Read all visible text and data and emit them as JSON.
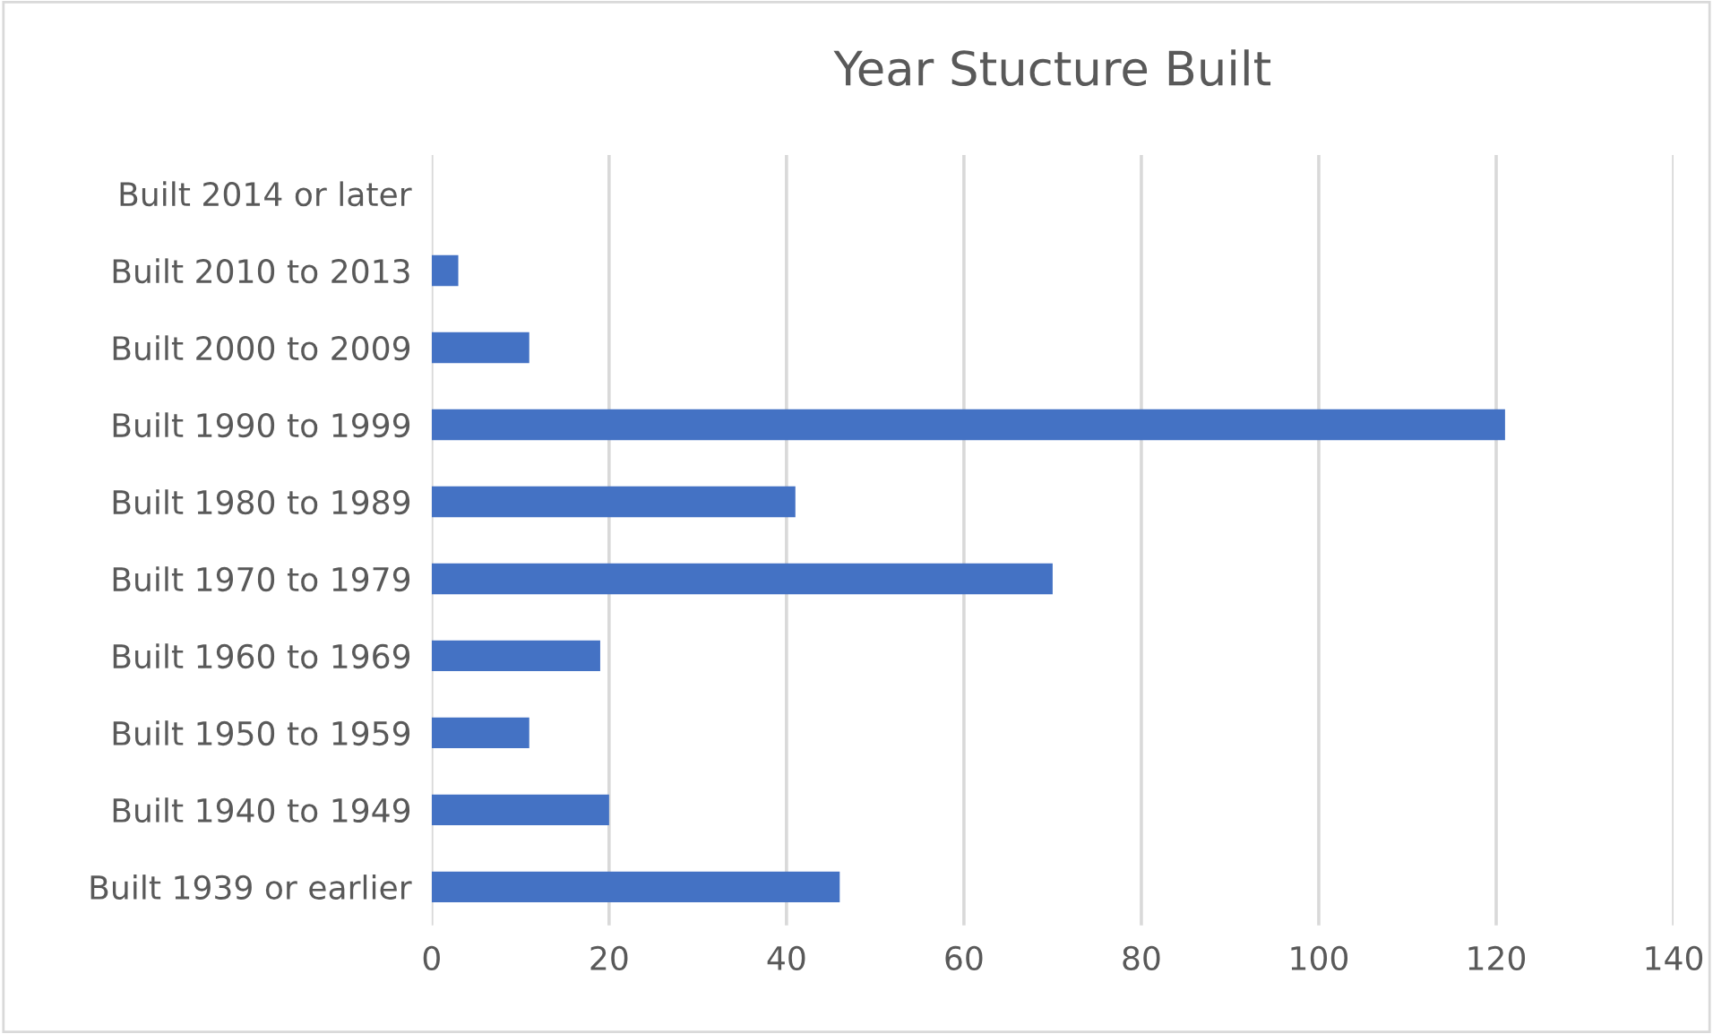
{
  "chart_data": {
    "type": "bar",
    "orientation": "horizontal",
    "title": "Year Stucture Built",
    "categories": [
      "Built 2014 or later",
      "Built 2010 to 2013",
      "Built 2000 to 2009",
      "Built 1990 to 1999",
      "Built 1980 to 1989",
      "Built 1970 to 1979",
      "Built 1960 to 1969",
      "Built 1950 to 1959",
      "Built 1940 to 1949",
      "Built 1939 or earlier"
    ],
    "values": [
      0,
      3,
      11,
      121,
      41,
      70,
      19,
      11,
      20,
      46
    ],
    "color": "#4472c4",
    "xlim": [
      0,
      140
    ],
    "xticks": [
      0,
      20,
      40,
      60,
      80,
      100,
      120,
      140
    ],
    "grid": "x"
  }
}
